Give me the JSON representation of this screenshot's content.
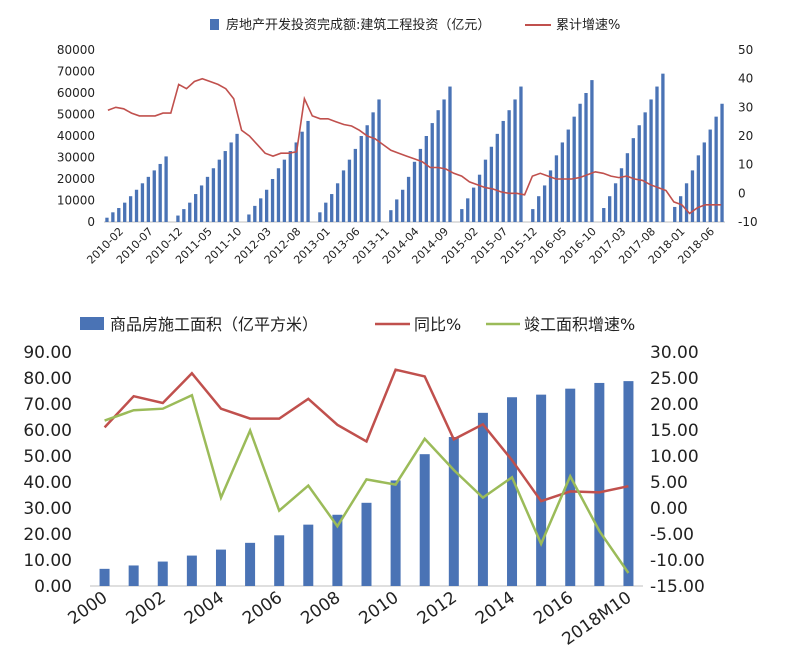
{
  "colors": {
    "bar": "#4a73b5",
    "line_red": "#c0504d",
    "line_green": "#9bbb59",
    "axis": "#bfbfbf",
    "text": "#222222"
  },
  "chart_data": [
    {
      "type": "bar+line",
      "legend": {
        "bar": "房地产开发投资完成额:建筑工程投资（亿元）",
        "line": "累计增速%"
      },
      "left_axis": {
        "ylim": [
          0,
          80000
        ],
        "ticks": [
          "0",
          "10000",
          "20000",
          "30000",
          "40000",
          "50000",
          "60000",
          "70000",
          "80000"
        ]
      },
      "right_axis": {
        "ylim": [
          -10,
          50
        ],
        "ticks": [
          "-10",
          "0",
          "10",
          "20",
          "30",
          "40",
          "50"
        ]
      },
      "x_tick_labels": [
        "2010-02",
        "2010-07",
        "2010-12",
        "2011-05",
        "2011-10",
        "2012-03",
        "2012-08",
        "2013-01",
        "2013-06",
        "2013-11",
        "2014-04",
        "2014-09",
        "2015-02",
        "2015-07",
        "2015-12",
        "2016-05",
        "2016-10",
        "2017-03",
        "2017-08",
        "2018-01",
        "2018-06"
      ],
      "bar_values": [
        2000,
        4500,
        6500,
        9000,
        12000,
        15000,
        18000,
        21000,
        24000,
        27000,
        30500,
        0,
        3000,
        6000,
        9000,
        13000,
        17000,
        21000,
        25000,
        29000,
        33000,
        37000,
        41000,
        0,
        3500,
        7500,
        11000,
        15000,
        20000,
        25000,
        29000,
        33000,
        37000,
        42000,
        47000,
        0,
        4500,
        9000,
        13000,
        18000,
        24000,
        29000,
        34000,
        40000,
        45000,
        51000,
        57000,
        0,
        5500,
        10500,
        15000,
        21000,
        28000,
        34000,
        40000,
        46000,
        52000,
        57000,
        63000,
        0,
        6000,
        11000,
        16000,
        22000,
        29000,
        35000,
        41000,
        47000,
        52000,
        57000,
        63000,
        0,
        6000,
        12000,
        17000,
        24000,
        31000,
        37000,
        43000,
        49000,
        55000,
        60000,
        66000,
        0,
        6500,
        12000,
        18000,
        25000,
        32000,
        39000,
        45000,
        51000,
        57000,
        63000,
        69000,
        0,
        7000,
        12000,
        18000,
        24000,
        31000,
        37000,
        43000,
        49000,
        55000
      ],
      "growth_values": [
        29,
        30,
        29.5,
        28,
        27,
        27,
        27,
        28,
        28,
        38,
        36.5,
        39,
        40,
        39,
        38,
        36.5,
        33,
        22,
        20,
        17,
        14,
        13,
        14,
        14,
        14.5,
        33,
        27,
        26,
        26,
        25,
        24,
        23.5,
        22,
        20,
        19,
        17,
        15,
        14,
        13,
        12,
        11,
        9,
        9,
        8.5,
        7,
        6,
        4,
        3,
        2,
        1.5,
        0.5,
        0,
        0,
        -0.5,
        6,
        7,
        6,
        5,
        5,
        5,
        5.5,
        6.5,
        7.5,
        7,
        6,
        5.5,
        6,
        5,
        4.5,
        3,
        2,
        1,
        -3,
        -4,
        -7,
        -5,
        -4,
        -4,
        -4
      ]
    },
    {
      "type": "bar+line",
      "legend": {
        "bar": "商品房施工面积（亿平方米）",
        "line1": "同比%",
        "line2": "竣工面积增速%"
      },
      "left_axis": {
        "ylim": [
          0,
          90
        ],
        "ticks": [
          "0.00",
          "10.00",
          "20.00",
          "30.00",
          "40.00",
          "50.00",
          "60.00",
          "70.00",
          "80.00",
          "90.00"
        ]
      },
      "right_axis": {
        "ylim": [
          -15,
          30
        ],
        "ticks": [
          "-15.00",
          "-10.00",
          "-5.00",
          "0.00",
          "5.00",
          "10.00",
          "15.00",
          "20.00",
          "25.00",
          "30.00"
        ]
      },
      "categories": [
        "2000",
        "2001",
        "2002",
        "2003",
        "2004",
        "2005",
        "2006",
        "2007",
        "2008",
        "2009",
        "2010",
        "2011",
        "2012",
        "2013",
        "2014",
        "2015",
        "2016",
        "2017",
        "2018M10"
      ],
      "x_tick_labels": [
        "2000",
        "2002",
        "2004",
        "2006",
        "2008",
        "2010",
        "2012",
        "2014",
        "2016",
        "2018M10"
      ],
      "area_values": [
        6.6,
        7.9,
        9.4,
        11.7,
        14.0,
        16.6,
        19.5,
        23.6,
        27.4,
        32.0,
        40.6,
        50.7,
        57.3,
        66.6,
        72.6,
        73.6,
        75.9,
        78.1,
        78.8
      ],
      "yoy_values": [
        15.5,
        21.5,
        20.2,
        25.9,
        19.1,
        17.2,
        17.2,
        21.0,
        16.0,
        12.8,
        26.6,
        25.3,
        13.2,
        16.1,
        9.2,
        1.3,
        3.2,
        3.0,
        4.2
      ],
      "completion_growth_values": [
        16.8,
        18.8,
        19.1,
        21.7,
        2.0,
        14.9,
        -0.5,
        4.3,
        -3.5,
        5.5,
        4.5,
        13.3,
        7.3,
        2.0,
        5.9,
        -6.9,
        6.1,
        -4.4,
        -12.5
      ]
    }
  ]
}
